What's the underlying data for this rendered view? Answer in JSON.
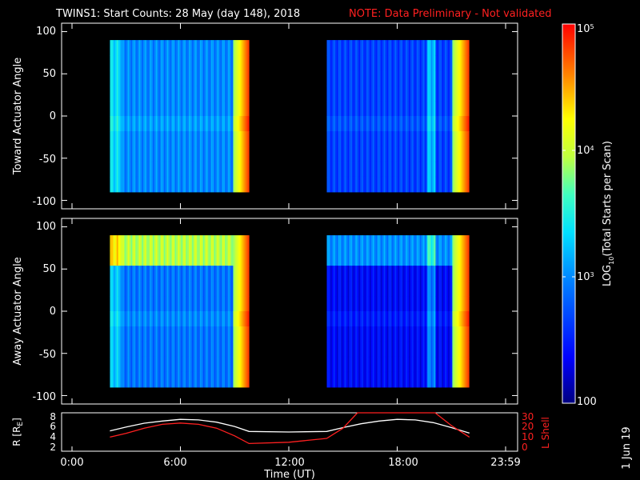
{
  "chart_data": [
    {
      "type": "heatmap",
      "panel": "toward",
      "title_main": "TWINS1: Start Counts: 28 May (day 148), 2018",
      "title_note": "NOTE: Data Preliminary - Not validated",
      "ylabel": "Toward Actuator Angle",
      "ylim": [
        -110,
        110
      ],
      "yticks": [
        "100",
        "50",
        "0",
        "-50",
        "-100"
      ],
      "x_hours_range": [
        0,
        24
      ],
      "data_blocks_hours": [
        [
          2.1,
          9.8
        ],
        [
          14.1,
          22.0
        ]
      ],
      "description_levels": "log10 counts ~2.5-3.2 in first block, ~2.3 in second block, bright ~4-5 near block ends"
    },
    {
      "type": "heatmap",
      "panel": "away",
      "ylabel": "Away Actuator Angle",
      "ylim": [
        -110,
        110
      ],
      "yticks": [
        "100",
        "50",
        "0",
        "-50",
        "-100"
      ],
      "x_hours_range": [
        0,
        24
      ],
      "data_blocks_hours": [
        [
          2.1,
          9.8
        ],
        [
          14.1,
          22.0
        ]
      ]
    },
    {
      "type": "line",
      "panel": "orbit",
      "ylabel_left": "R [R",
      "ylabel_left_sub": "E",
      "ylabel_left_end": "]",
      "ylabel_right": "L Shell",
      "left_yticks": [
        "8",
        "6",
        "4",
        "2"
      ],
      "right_yticks": [
        "30",
        "20",
        "10",
        "0"
      ],
      "ylim_left": [
        1.5,
        8.5
      ],
      "ylim_right": [
        0,
        30
      ],
      "series": [
        {
          "name": "R",
          "color": "#ffffff",
          "x": [
            2.1,
            3.0,
            4.0,
            5.0,
            6.0,
            7.0,
            8.0,
            9.0,
            9.8,
            12.0,
            14.1,
            15.0,
            16.0,
            17.0,
            18.0,
            19.0,
            20.0,
            21.0,
            22.0
          ],
          "y": [
            5.2,
            5.9,
            6.6,
            7.0,
            7.3,
            7.2,
            6.8,
            6.0,
            5.1,
            5.0,
            5.1,
            5.8,
            6.5,
            7.0,
            7.3,
            7.2,
            6.7,
            5.8,
            4.8
          ]
        },
        {
          "name": "L Shell",
          "color": "#ff2020",
          "x": [
            2.1,
            3.0,
            4.0,
            5.0,
            6.0,
            7.0,
            8.0,
            9.0,
            9.8,
            12.0,
            14.1,
            15.0,
            15.8,
            20.1,
            21.0,
            22.0
          ],
          "y": [
            11,
            14,
            18,
            21,
            22,
            21,
            18,
            12,
            6,
            7,
            10,
            18,
            30,
            30,
            20,
            11
          ]
        }
      ]
    }
  ],
  "xaxis": {
    "label": "Time (UT)",
    "ticks": [
      "0:00",
      "6:00",
      "12:00",
      "18:00",
      "23:59"
    ]
  },
  "colorbar": {
    "label": "LOG",
    "label_sub": "10",
    "label_end": "(Total Starts per Scan)",
    "tick_top_base": "10",
    "tick_top_exp": "5",
    "tick_mid_base": "10",
    "tick_mid_exp": "4",
    "tick_low_base": "10",
    "tick_low_exp": "3",
    "tick_bottom": "100",
    "range_log": [
      2,
      5
    ]
  },
  "date_stamp": "1 Jun 19"
}
